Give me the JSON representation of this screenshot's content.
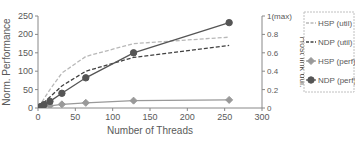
{
  "chart_data": {
    "type": "line",
    "x_label": "Number of Threads",
    "y_label": "Norm. Performance",
    "y2_label": "Host link util.",
    "x": [
      1,
      2,
      4,
      8,
      16,
      32,
      64,
      128,
      256
    ],
    "xlim": [
      0,
      300
    ],
    "xticks": [
      0,
      50,
      100,
      150,
      200,
      250,
      300
    ],
    "ylim": [
      0,
      250
    ],
    "yticks": [
      0,
      50,
      100,
      150,
      200,
      250
    ],
    "y2lim": [
      0,
      1
    ],
    "y2ticks": [
      0,
      0.2,
      0.4,
      0.6,
      0.8,
      {
        "value": 1,
        "label": "1(max)"
      }
    ],
    "grid": false,
    "legend": "right",
    "series": [
      {
        "name": "HSP (util)",
        "color": "#b8b8b8",
        "axis": "y2",
        "line_style": "dashed",
        "marker": "none",
        "values": [
          0.01,
          0.02,
          0.05,
          0.1,
          0.2,
          0.38,
          0.56,
          0.7,
          0.77
        ]
      },
      {
        "name": "NDP (util)",
        "color": "#404040",
        "axis": "y2",
        "line_style": "dashed",
        "marker": "none",
        "values": [
          0.01,
          0.015,
          0.03,
          0.06,
          0.12,
          0.24,
          0.4,
          0.55,
          0.68
        ]
      },
      {
        "name": "HSP (perf)",
        "color": "#999999",
        "line_style": "solid",
        "marker": "diamond",
        "values": [
          1,
          1.5,
          2,
          4,
          6,
          10,
          14,
          20,
          22
        ]
      },
      {
        "name": "NDP (perf)",
        "color": "#555555",
        "line_style": "solid",
        "marker": "circle",
        "values": [
          1,
          2,
          4,
          9,
          18,
          40,
          82,
          150,
          232
        ]
      }
    ]
  }
}
